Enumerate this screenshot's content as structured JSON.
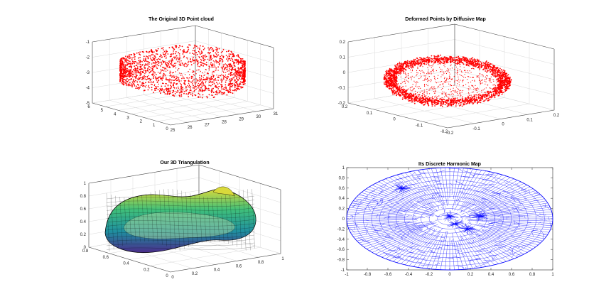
{
  "chart_data": [
    {
      "type": "scatter",
      "subtype": "3d-scatter",
      "title": "The Original 3D Point cloud",
      "x_ticks": [
        "25",
        "26",
        "27",
        "28",
        "29",
        "30",
        "31"
      ],
      "y_ticks": [
        "0",
        "1",
        "2",
        "3",
        "4",
        "5",
        "6"
      ],
      "z_ticks": [
        "-5",
        "-4",
        "-3",
        "-2",
        "-1"
      ],
      "xlim": [
        25,
        31
      ],
      "ylim": [
        0,
        6
      ],
      "zlim": [
        -5,
        -1
      ],
      "marker_color": "#ff0000",
      "grid": true
    },
    {
      "type": "scatter",
      "subtype": "3d-scatter",
      "title": "Deformed Points by Diffusive Map",
      "x_ticks": [
        "-0.2",
        "-0.1",
        "0",
        "0.1",
        "0.2"
      ],
      "y_ticks": [
        "-0.2",
        "-0.1",
        "0",
        "0.1",
        "0.2"
      ],
      "z_ticks": [
        "-0.2",
        "-0.1",
        "0",
        "0.1",
        "0.2"
      ],
      "xlim": [
        -0.2,
        0.2
      ],
      "ylim": [
        -0.2,
        0.2
      ],
      "zlim": [
        -0.2,
        0.2
      ],
      "marker_color": "#ff0000",
      "grid": true
    },
    {
      "type": "surface",
      "subtype": "3d-triangulated-surface",
      "title": "Our 3D Triangulation",
      "x_ticks": [
        "0",
        "0.2",
        "0.4",
        "0.6",
        "0.8",
        "1"
      ],
      "y_ticks": [
        "0",
        "0.2",
        "0.4",
        "0.6",
        "0.8"
      ],
      "z_ticks": [
        "0",
        "0.2",
        "0.4",
        "0.6",
        "0.8",
        "1"
      ],
      "xlim": [
        0,
        1
      ],
      "ylim": [
        0,
        1
      ],
      "zlim": [
        0,
        1
      ],
      "colormap": [
        "#4a2c8a",
        "#1f8fa0",
        "#3fbf7a",
        "#d9d93a"
      ],
      "edge_color": "#000000",
      "grid": true
    },
    {
      "type": "mesh",
      "subtype": "2d-triangulation-disk",
      "title": "Its Discrete Harmonic Map",
      "x_ticks": [
        "-1",
        "-0.8",
        "-0.6",
        "-0.4",
        "-0.2",
        "0",
        "0.2",
        "0.4",
        "0.6",
        "0.8",
        "1"
      ],
      "y_ticks": [
        "-1",
        "-0.8",
        "-0.6",
        "-0.4",
        "-0.2",
        "0",
        "0.2",
        "0.4",
        "0.6",
        "0.8",
        "1"
      ],
      "xlim": [
        -1,
        1
      ],
      "ylim": [
        -1,
        1
      ],
      "boundary": "unit circle",
      "line_color": "#0000ff",
      "grid": false
    }
  ]
}
